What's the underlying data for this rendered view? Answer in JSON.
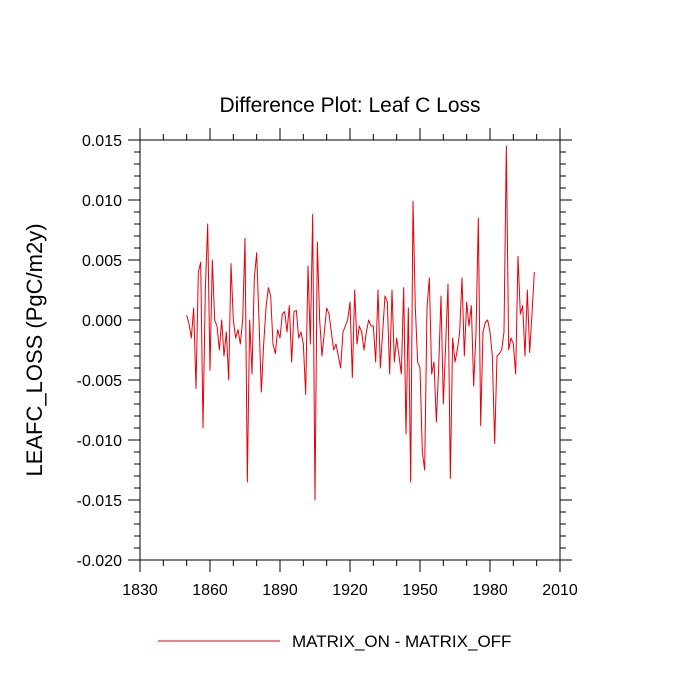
{
  "chart_data": {
    "type": "line",
    "title": "Difference Plot: Leaf C Loss",
    "xlabel": "",
    "ylabel": "LEAFC_LOSS  (PgC/m2y)",
    "xlim": [
      1830,
      2010
    ],
    "ylim": [
      -0.02,
      0.015
    ],
    "xticks": [
      1830,
      1860,
      1890,
      1920,
      1950,
      1980,
      2010
    ],
    "xtick_labels": [
      "1830",
      "1860",
      "1890",
      "1920",
      "1950",
      "1980",
      "2010"
    ],
    "yticks": [
      -0.02,
      -0.015,
      -0.01,
      -0.005,
      0.0,
      0.005,
      0.01,
      0.015
    ],
    "ytick_labels": [
      "-0.020",
      "-0.015",
      "-0.010",
      "-0.005",
      "0.000",
      "0.005",
      "0.010",
      "0.015"
    ],
    "grid": false,
    "legend_position": "bottom-center",
    "series": [
      {
        "name": "MATRIX_ON - MATRIX_OFF",
        "color": "#e8000b",
        "x_start": 1850,
        "x_step": 1,
        "values": [
          0.0004,
          -0.0003,
          -0.0015,
          0.001,
          -0.0057,
          0.004,
          0.0048,
          -0.009,
          0.0025,
          0.008,
          -0.0042,
          0.005,
          0.0,
          -0.0005,
          -0.0025,
          0.0,
          -0.003,
          -0.001,
          -0.005,
          0.0047,
          0.0,
          -0.0015,
          -0.0008,
          -0.002,
          0.0,
          0.0068,
          -0.0135,
          0.0,
          -0.0045,
          0.0035,
          0.0056,
          0.0,
          -0.006,
          -0.002,
          0.001,
          0.0027,
          0.002,
          -0.002,
          -0.0028,
          -0.0008,
          -0.0015,
          0.0005,
          0.0007,
          -0.001,
          0.0012,
          -0.0035,
          0.0007,
          0.0008,
          -0.0015,
          -0.001,
          -0.002,
          -0.0062,
          0.0045,
          -0.002,
          0.0088,
          -0.015,
          0.0065,
          0.0,
          -0.003,
          -0.001,
          0.001,
          0.0005,
          -0.001,
          -0.0025,
          -0.002,
          -0.003,
          -0.004,
          -0.001,
          -0.0005,
          0.0,
          0.0015,
          -0.0048,
          0.0025,
          -0.002,
          -0.0005,
          -0.001,
          -0.0025,
          -0.001,
          0.0,
          -0.0005,
          -0.0005,
          -0.0035,
          0.0025,
          -0.004,
          -0.001,
          0.002,
          0.0015,
          -0.0045,
          0.0025,
          -0.0035,
          -0.0015,
          -0.003,
          -0.0045,
          0.0027,
          -0.0095,
          0.001,
          -0.0135,
          0.0099,
          0.001,
          -0.0035,
          -0.004,
          -0.011,
          -0.0125,
          0.001,
          0.0035,
          -0.0045,
          -0.0035,
          -0.0085,
          -0.004,
          0.002,
          -0.007,
          -0.002,
          0.003,
          -0.0132,
          -0.0015,
          -0.0035,
          -0.0025,
          -0.001,
          0.0035,
          -0.003,
          0.0015,
          -0.0005,
          0.0012,
          -0.0055,
          -0.001,
          0.0085,
          -0.0088,
          -0.001,
          -0.0002,
          0.0,
          -0.001,
          -0.003,
          -0.0103,
          -0.003,
          -0.0028,
          -0.0025,
          -0.001,
          0.0145,
          -0.0025,
          -0.0015,
          -0.002,
          -0.0045,
          0.0053,
          0.0005,
          0.0012,
          -0.003,
          0.0025,
          -0.0027,
          0.0005,
          0.004
        ]
      }
    ]
  }
}
